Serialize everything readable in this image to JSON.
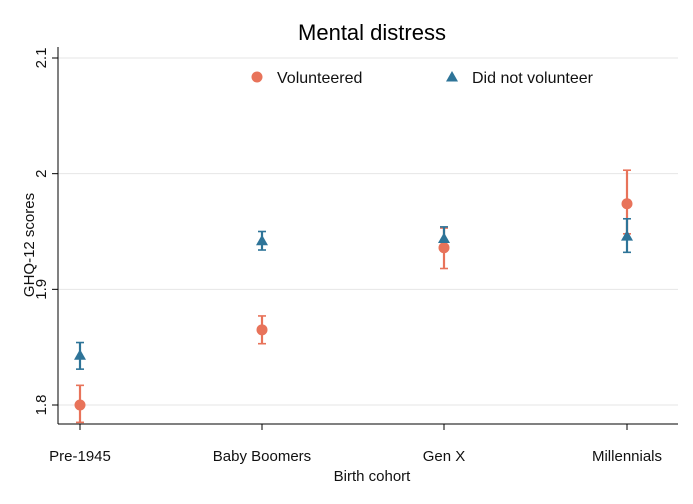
{
  "chart_data": {
    "type": "scatter",
    "title": "Mental distress",
    "xlabel": "Birth cohort",
    "ylabel": "GHQ-12 scores",
    "categories": [
      "Pre-1945",
      "Baby Boomers",
      "Gen X",
      "Millennials"
    ],
    "ylim": [
      1.775,
      2.105
    ],
    "yticks": [
      "1.8",
      "1.9",
      "2",
      "2.1"
    ],
    "grid": true,
    "legend_position": "top",
    "series": [
      {
        "name": "Volunteered",
        "marker": "circle",
        "color": "#e8735a",
        "values": [
          1.8,
          1.865,
          1.936,
          1.974
        ],
        "ci_low": [
          1.785,
          1.853,
          1.918,
          1.948
        ],
        "ci_high": [
          1.817,
          1.877,
          1.953,
          2.003
        ]
      },
      {
        "name": "Did not volunteer",
        "marker": "triangle",
        "color": "#2e7498",
        "values": [
          1.843,
          1.942,
          1.944,
          1.946
        ],
        "ci_low": [
          1.831,
          1.934,
          1.935,
          1.932
        ],
        "ci_high": [
          1.854,
          1.95,
          1.954,
          1.961
        ]
      }
    ]
  }
}
